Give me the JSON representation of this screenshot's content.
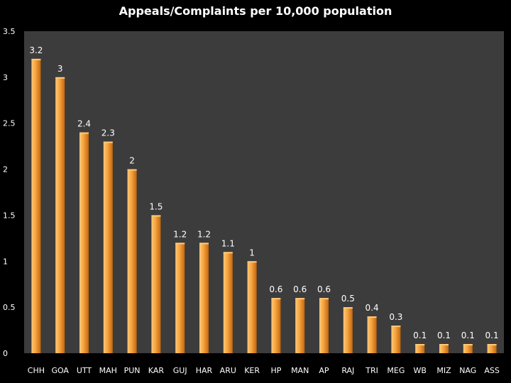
{
  "chart_data": {
    "type": "bar",
    "title": "Appeals/Complaints per 10,000 population",
    "xlabel": "",
    "ylabel": "",
    "ylim": [
      0,
      3.5
    ],
    "yticks": [
      "0",
      "0.5",
      "1",
      "1.5",
      "2",
      "2.5",
      "3",
      "3.5"
    ],
    "yticks_values": [
      0,
      0.5,
      1,
      1.5,
      2,
      2.5,
      3,
      3.5
    ],
    "grid": false,
    "categories": [
      "CHH",
      "GOA",
      "UTT",
      "MAH",
      "PUN",
      "KAR",
      "GUJ",
      "HAR",
      "ARU",
      "KER",
      "HP",
      "MAN",
      "AP",
      "RAJ",
      "TRI",
      "MEG",
      "WB",
      "MIZ",
      "NAG",
      "ASS"
    ],
    "values": [
      3.2,
      3,
      2.4,
      2.3,
      2,
      1.5,
      1.2,
      1.2,
      1.1,
      1,
      0.6,
      0.6,
      0.6,
      0.5,
      0.4,
      0.3,
      0.1,
      0.1,
      0.1,
      0.1
    ],
    "data_labels": [
      "3.2",
      "3",
      "2.4",
      "2.3",
      "2",
      "1.5",
      "1.2",
      "1.2",
      "1.1",
      "1",
      "0.6",
      "0.6",
      "0.6",
      "0.5",
      "0.4",
      "0.3",
      "0.1",
      "0.1",
      "0.1",
      "0.1"
    ]
  },
  "colors": {
    "plot_background": "#3c3c3c",
    "slide_background": "#000000",
    "bar_light": "#ffc97a",
    "bar_mid": "#f7a23c",
    "bar_dark": "#c2670f",
    "text": "#ffffff"
  }
}
